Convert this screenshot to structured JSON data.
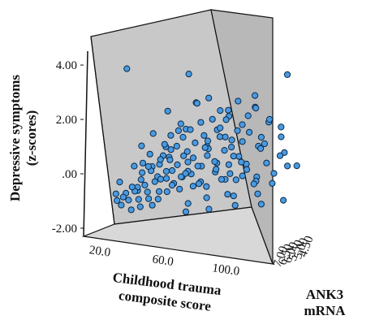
{
  "chart_data": {
    "type": "scatter",
    "z_axis": {
      "label": [
        "Depressive symptoms",
        "(z-scores)"
      ],
      "ticks": [
        "4.00",
        "2.00",
        ".00",
        "-2.00"
      ],
      "tick_values": [
        4,
        2,
        0,
        -2
      ],
      "range": [
        -2.3,
        4.6
      ]
    },
    "x_axis": {
      "label": [
        "Childhood trauma",
        "composite score"
      ],
      "ticks": [
        "20.0",
        "60.0",
        "100.0"
      ],
      "tick_values": [
        20,
        60,
        100
      ],
      "range": [
        10,
        130
      ]
    },
    "y_axis": {
      "label": [
        "ANK3",
        "mRNA"
      ],
      "ticks": [
        "7.00",
        "6.50",
        "6.00",
        "5.50",
        "5.00",
        "4.50"
      ],
      "tick_values": [
        7.0,
        6.5,
        6.0,
        5.5,
        5.0,
        4.5
      ],
      "range": [
        7.25,
        4.25
      ]
    },
    "marker_color": "#4a9ae0",
    "marker_edge": "#0a2a4a",
    "wall_color": "#c8c8c8",
    "floor_color": "#d8d8d8",
    "points": [
      [
        23,
        6.1,
        -0.8
      ],
      [
        25,
        6.3,
        -1.0
      ],
      [
        27,
        6.0,
        -0.9
      ],
      [
        29,
        6.5,
        -1.1
      ],
      [
        30,
        6.2,
        -0.7
      ],
      [
        32,
        5.9,
        -0.5
      ],
      [
        33,
        6.4,
        -0.9
      ],
      [
        35,
        6.1,
        -0.6
      ],
      [
        36,
        6.6,
        -1.2
      ],
      [
        37,
        5.8,
        -0.2
      ],
      [
        38,
        6.3,
        -0.4
      ],
      [
        39,
        6.0,
        0.1
      ],
      [
        40,
        6.5,
        -0.8
      ],
      [
        41,
        5.7,
        0.3
      ],
      [
        42,
        6.2,
        -0.3
      ],
      [
        43,
        6.8,
        -1.0
      ],
      [
        44,
        5.9,
        0.2
      ],
      [
        45,
        6.4,
        -0.5
      ],
      [
        46,
        6.1,
        0.4
      ],
      [
        47,
        6.6,
        -0.7
      ],
      [
        48,
        5.6,
        0.6
      ],
      [
        49,
        6.3,
        -0.1
      ],
      [
        50,
        6.0,
        0.5
      ],
      [
        50,
        6.7,
        -0.9
      ],
      [
        51,
        5.8,
        0.8
      ],
      [
        52,
        6.2,
        0.0
      ],
      [
        53,
        6.5,
        -0.4
      ],
      [
        54,
        5.5,
        1.0
      ],
      [
        55,
        6.1,
        0.3
      ],
      [
        55,
        6.9,
        -0.6
      ],
      [
        56,
        5.9,
        0.7
      ],
      [
        57,
        6.4,
        0.1
      ],
      [
        58,
        6.0,
        -0.2
      ],
      [
        59,
        5.7,
        1.2
      ],
      [
        60,
        6.3,
        0.4
      ],
      [
        60,
        6.8,
        -0.3
      ],
      [
        61,
        5.4,
        1.5
      ],
      [
        62,
        6.1,
        0.6
      ],
      [
        63,
        6.6,
        0.0
      ],
      [
        64,
        5.8,
        0.9
      ],
      [
        65,
        6.2,
        0.2
      ],
      [
        65,
        5.3,
        1.8
      ],
      [
        66,
        6.5,
        -0.2
      ],
      [
        67,
        5.9,
        1.1
      ],
      [
        68,
        6.0,
        0.4
      ],
      [
        69,
        6.7,
        0.3
      ],
      [
        70,
        5.6,
        1.4
      ],
      [
        70,
        6.3,
        0.8
      ],
      [
        71,
        5.2,
        2.1
      ],
      [
        72,
        6.1,
        -0.1
      ],
      [
        73,
        5.8,
        0.6
      ],
      [
        74,
        6.4,
        1.0
      ],
      [
        75,
        5.5,
        1.7
      ],
      [
        75,
        6.0,
        0.0
      ],
      [
        76,
        6.9,
        0.5
      ],
      [
        77,
        5.7,
        1.3
      ],
      [
        78,
        6.2,
        0.7
      ],
      [
        79,
        5.3,
        2.3
      ],
      [
        80,
        6.6,
        0.2
      ],
      [
        80,
        5.9,
        1.6
      ],
      [
        81,
        6.1,
        1.1
      ],
      [
        82,
        5.4,
        0.5
      ],
      [
        83,
        6.3,
        1.4
      ],
      [
        84,
        5.6,
        2.0
      ],
      [
        85,
        6.0,
        0.9
      ],
      [
        85,
        6.8,
        0.1
      ],
      [
        86,
        5.2,
        1.2
      ],
      [
        87,
        5.8,
        1.8
      ],
      [
        88,
        6.4,
        0.6
      ],
      [
        89,
        5.5,
        2.4
      ],
      [
        90,
        6.1,
        0.3
      ],
      [
        90,
        5.1,
        1.6
      ],
      [
        91,
        6.7,
        1.0
      ],
      [
        92,
        5.7,
        0.8
      ],
      [
        93,
        6.2,
        1.9
      ],
      [
        94,
        5.3,
        0.2
      ],
      [
        95,
        5.9,
        1.5
      ],
      [
        95,
        6.5,
        0.4
      ],
      [
        96,
        5.0,
        2.2
      ],
      [
        97,
        6.0,
        1.2
      ],
      [
        98,
        5.4,
        0.9
      ],
      [
        99,
        6.3,
        -0.2
      ],
      [
        100,
        5.6,
        1.7
      ],
      [
        100,
        6.8,
        0.7
      ],
      [
        101,
        5.2,
        2.6
      ],
      [
        102,
        5.9,
        0.5
      ],
      [
        103,
        6.4,
        1.3
      ],
      [
        104,
        5.1,
        0.1
      ],
      [
        105,
        5.7,
        2.1
      ],
      [
        106,
        6.1,
        0.8
      ],
      [
        107,
        4.9,
        1.4
      ],
      [
        108,
        5.5,
        0.3
      ],
      [
        109,
        6.6,
        1.1
      ],
      [
        110,
        5.3,
        1.9
      ],
      [
        111,
        5.8,
        -0.1
      ],
      [
        112,
        4.8,
        2.5
      ],
      [
        113,
        6.2,
        0.6
      ],
      [
        114,
        5.4,
        1.0
      ],
      [
        115,
        5.0,
        0.2
      ],
      [
        116,
        5.9,
        1.8
      ],
      [
        118,
        4.7,
        1.2
      ],
      [
        120,
        5.6,
        0.7
      ],
      [
        122,
        5.2,
        2.0
      ],
      [
        124,
        4.9,
        0.9
      ],
      [
        126,
        5.5,
        1.5
      ],
      [
        28,
        5.8,
        3.8
      ],
      [
        66,
        5.6,
        3.9
      ],
      [
        122,
        4.6,
        4.2
      ],
      [
        95,
        6.2,
        2.9
      ],
      [
        78,
        5.5,
        3.1
      ],
      [
        46,
        6.0,
        1.6
      ],
      [
        52,
        5.5,
        2.4
      ],
      [
        58,
        6.6,
        1.3
      ],
      [
        34,
        6.0,
        0.3
      ],
      [
        44,
        6.7,
        0.6
      ],
      [
        62,
        6.9,
        1.0
      ],
      [
        86,
        6.9,
        1.6
      ],
      [
        104,
        6.7,
        2.3
      ],
      [
        116,
        6.5,
        1.8
      ],
      [
        72,
        6.8,
        2.1
      ],
      [
        40,
        5.4,
        0.7
      ],
      [
        54,
        6.8,
        0.2
      ],
      [
        68,
        5.2,
        2.8
      ],
      [
        82,
        5.0,
        2.6
      ],
      [
        96,
        6.3,
        2.7
      ],
      [
        110,
        5.9,
        3.1
      ],
      [
        48,
        5.2,
        1.1
      ],
      [
        64,
        6.3,
        1.9
      ],
      [
        74,
        6.9,
        -0.6
      ],
      [
        88,
        5.2,
        -0.4
      ],
      [
        36,
        5.6,
        1.0
      ],
      [
        57,
        5.0,
        1.9
      ],
      [
        92,
        4.8,
        3.0
      ],
      [
        106,
        5.3,
        3.4
      ],
      [
        120,
        4.9,
        2.3
      ],
      [
        30,
        6.8,
        -0.2
      ],
      [
        42,
        6.9,
        -0.4
      ],
      [
        70,
        6.5,
        -1.0
      ],
      [
        84,
        6.4,
        -0.8
      ],
      [
        98,
        6.0,
        -0.6
      ],
      [
        112,
        5.6,
        -0.5
      ],
      [
        124,
        5.3,
        -0.3
      ],
      [
        128,
        4.6,
        0.9
      ],
      [
        76,
        5.4,
        -0.6
      ],
      [
        60,
        5.0,
        0.1
      ],
      [
        50,
        4.9,
        1.4
      ],
      [
        66,
        4.8,
        2.7
      ],
      [
        80,
        4.7,
        1.9
      ],
      [
        102,
        4.6,
        2.8
      ],
      [
        118,
        5.8,
        2.6
      ]
    ]
  }
}
